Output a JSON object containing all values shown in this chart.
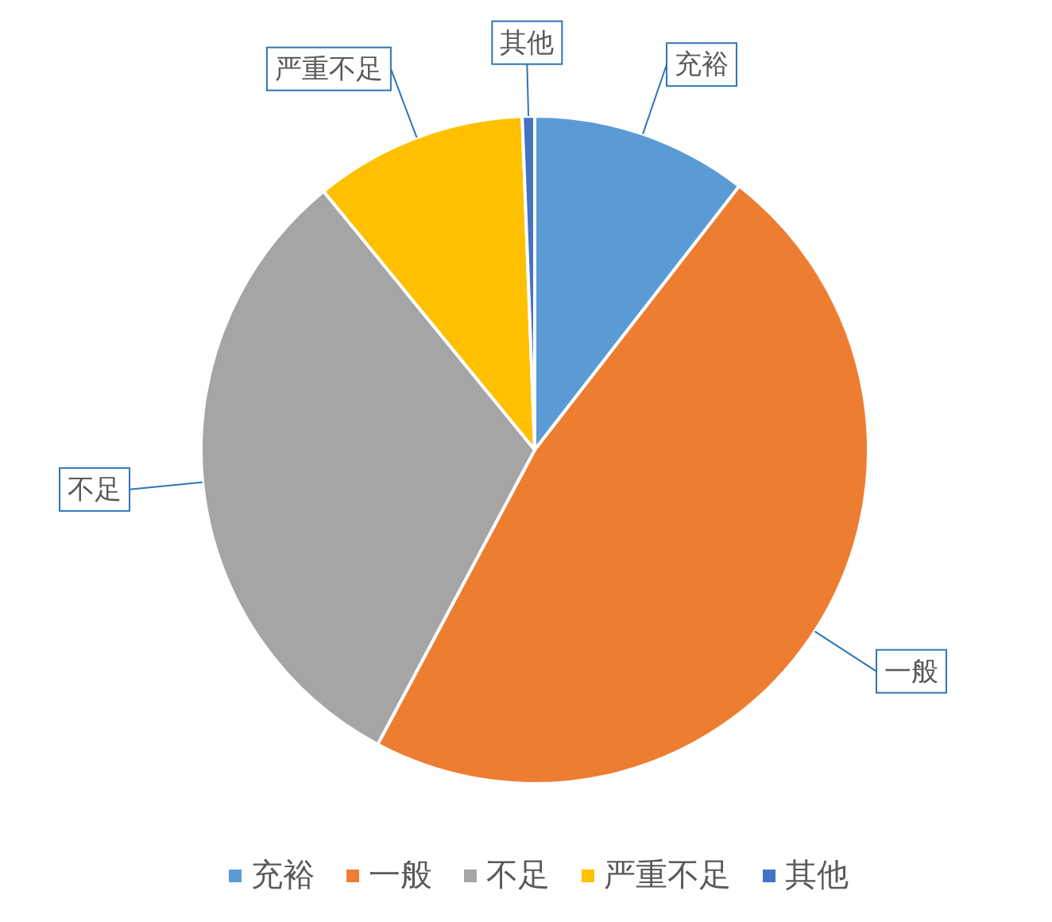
{
  "chart_data": {
    "type": "pie",
    "categories": [
      "充裕",
      "一般",
      "不足",
      "严重不足",
      "其他"
    ],
    "values": [
      10.5,
      47.3,
      31.3,
      10.3,
      0.6
    ],
    "colors": [
      "#5b9bd5",
      "#ed7d31",
      "#a5a5a5",
      "#ffc000",
      "#4472c4"
    ],
    "legend": "bottom"
  }
}
